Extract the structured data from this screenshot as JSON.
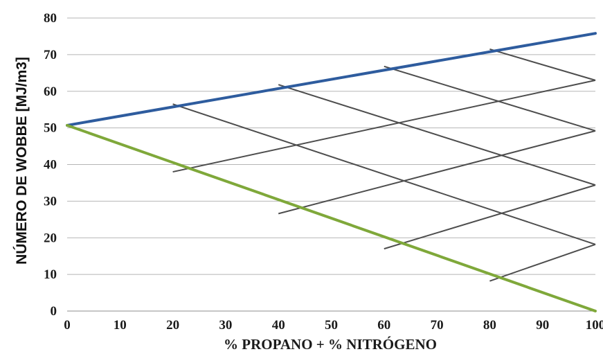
{
  "chart_data": {
    "type": "line",
    "title": "",
    "xlabel": "% PROPANO + % NITRÓGENO",
    "ylabel": "NÚMERO DE WOBBE [MJ/m3]",
    "xlim": [
      0,
      100
    ],
    "ylim": [
      0,
      80
    ],
    "xticks": [
      0,
      10,
      20,
      30,
      40,
      50,
      60,
      70,
      80,
      90,
      100
    ],
    "yticks": [
      0,
      10,
      20,
      30,
      40,
      50,
      60,
      70,
      80
    ],
    "grid": "horizontal",
    "colors": {
      "upper": "#2e5c9e",
      "lower": "#7fa83a",
      "mesh": "#4d4d4d",
      "grid": "#b5b5b5"
    },
    "series": [
      {
        "x": [
          0,
          100
        ],
        "y": [
          50.7,
          75.8
        ],
        "color": "#2e5c9e"
      },
      {
        "x": [
          0,
          100
        ],
        "y": [
          50.7,
          0
        ],
        "color": "#7fa83a"
      }
    ],
    "mesh_lines": [
      {
        "x": [
          20,
          100
        ],
        "y": [
          38.0,
          63.0
        ]
      },
      {
        "x": [
          40,
          100
        ],
        "y": [
          26.6,
          49.2
        ]
      },
      {
        "x": [
          60,
          100
        ],
        "y": [
          17.0,
          34.4
        ]
      },
      {
        "x": [
          80,
          100
        ],
        "y": [
          8.2,
          18.2
        ]
      },
      {
        "x": [
          20,
          100
        ],
        "y": [
          56.5,
          18.2
        ]
      },
      {
        "x": [
          40,
          100
        ],
        "y": [
          61.8,
          34.4
        ]
      },
      {
        "x": [
          60,
          100
        ],
        "y": [
          66.8,
          49.2
        ]
      },
      {
        "x": [
          80,
          100
        ],
        "y": [
          71.5,
          63.0
        ]
      }
    ]
  }
}
